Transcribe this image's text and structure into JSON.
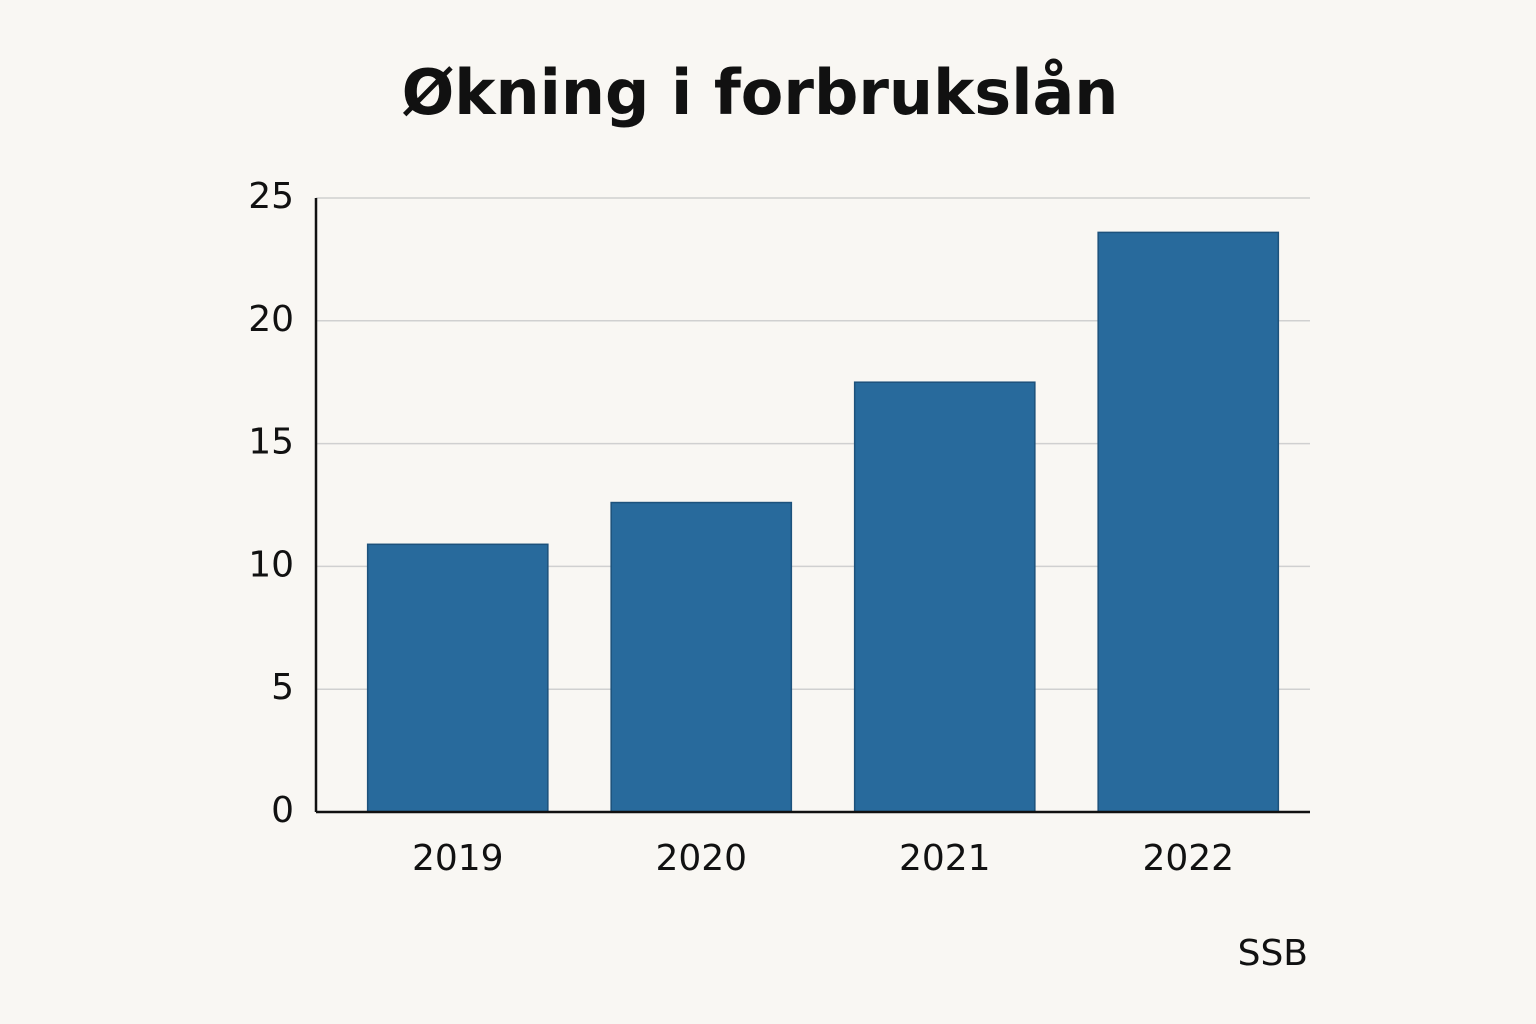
{
  "chart_data": {
    "type": "bar",
    "title": "Økning i forbrukslån",
    "categories": [
      "2019",
      "2020",
      "2021",
      "2022"
    ],
    "values": [
      10.9,
      12.6,
      17.5,
      23.6
    ],
    "color": "#286a9c",
    "ylim": [
      0,
      25
    ],
    "yticks": [
      0,
      5,
      10,
      15,
      20,
      25
    ],
    "grid": true,
    "source": "SSB"
  }
}
